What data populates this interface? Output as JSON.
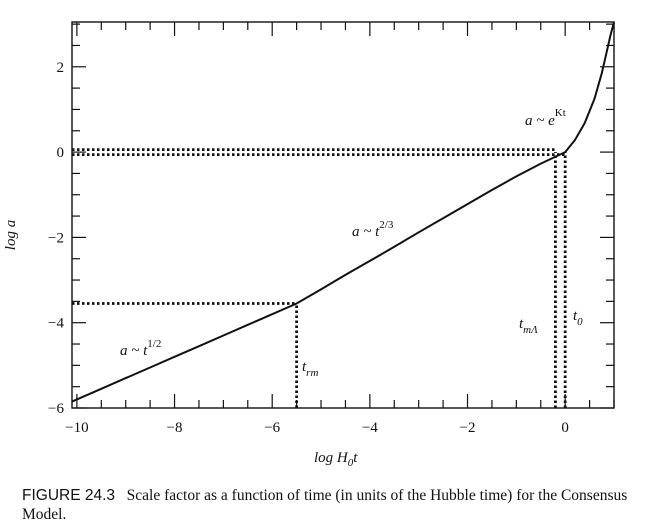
{
  "chart_data": {
    "type": "line",
    "title": "",
    "xlabel": "log H₀t",
    "ylabel": "log a",
    "xlim": [
      -10.1,
      1.0
    ],
    "ylim": [
      -6.0,
      3.05
    ],
    "xticks": [
      -10,
      -8,
      -6,
      -4,
      -2,
      0
    ],
    "yticks": [
      -6,
      -4,
      -2,
      0,
      2
    ],
    "xtick_labels": [
      "−10",
      "−8",
      "−6",
      "−4",
      "−2",
      "0"
    ],
    "ytick_labels": [
      "−6",
      "−4",
      "−2",
      "0",
      "2"
    ],
    "grid": false,
    "series": [
      {
        "x": [
          -10.1,
          -9.6,
          -9.0,
          -8.5,
          -8.0,
          -7.5,
          -7.0,
          -6.5,
          -6.0,
          -5.5,
          -5.0,
          -4.5,
          -4.0,
          -3.5,
          -3.0,
          -2.5,
          -2.0,
          -1.5,
          -1.0,
          -0.5,
          0.0,
          0.2,
          0.4,
          0.6,
          0.75,
          0.85,
          0.93,
          1.0
        ],
        "y": [
          -5.85,
          -5.6,
          -5.3,
          -5.05,
          -4.8,
          -4.55,
          -4.3,
          -4.05,
          -3.8,
          -3.55,
          -3.22,
          -2.88,
          -2.55,
          -2.22,
          -1.88,
          -1.55,
          -1.22,
          -0.89,
          -0.57,
          -0.27,
          0.0,
          0.28,
          0.68,
          1.25,
          1.85,
          2.35,
          2.75,
          3.05
        ]
      }
    ],
    "reference_lines": [
      {
        "x": -5.5,
        "y": -3.55
      },
      {
        "x": -0.2,
        "y": 0.0
      },
      {
        "x": 0.0,
        "y": 0.0
      }
    ],
    "annotations": {
      "radiation": {
        "base": "a ~ t",
        "exp": "1/2"
      },
      "matter": {
        "base": "a ~ t",
        "exp": "2/3"
      },
      "lambda": {
        "base": "a ~ e",
        "exp": "Kt"
      },
      "t_rm": {
        "base": "t",
        "sub": "rm"
      },
      "t_mL": {
        "base": "t",
        "sub": "mΛ"
      },
      "t_0": {
        "base": "t",
        "sub": "0"
      }
    }
  },
  "caption": {
    "label": "FIGURE 24.3",
    "text": "Scale factor as a function of time (in units of the Hubble time) for the Consensus Model."
  }
}
